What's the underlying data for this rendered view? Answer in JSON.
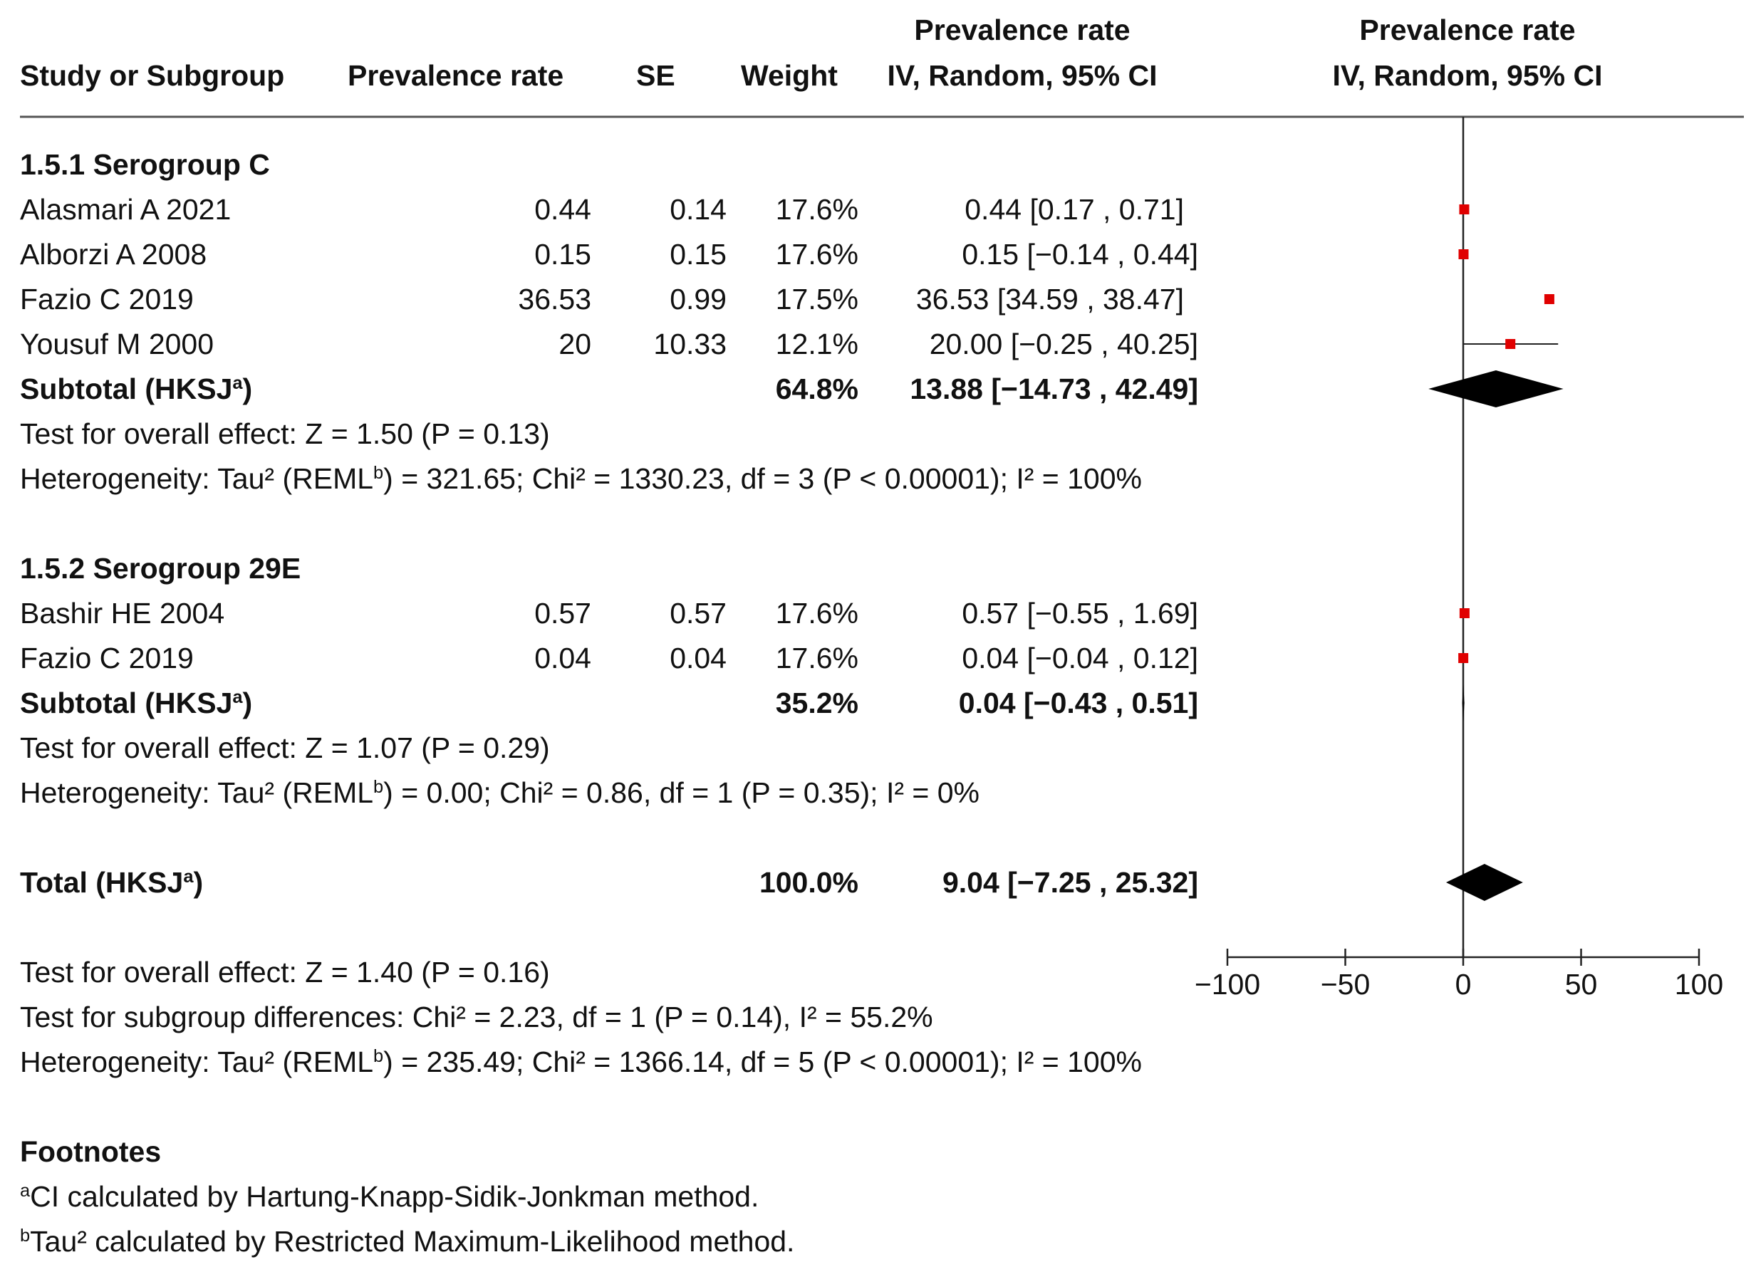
{
  "headers": {
    "study": "Study or Subgroup",
    "prevalence": "Prevalence rate",
    "se": "SE",
    "weight": "Weight",
    "ci_line1": "Prevalence rate",
    "ci_line2": "IV, Random, 95% CI",
    "plot_line1": "Prevalence rate",
    "plot_line2": "IV, Random, 95% CI"
  },
  "groups": [
    {
      "title": "1.5.1 Serogroup C",
      "studies": [
        {
          "name": "Alasmari A 2021",
          "prevalence": "0.44",
          "se": "0.14",
          "weight": "17.6%",
          "ci": "0.44 [0.17 , 0.71]"
        },
        {
          "name": "Alborzi A 2008",
          "prevalence": "0.15",
          "se": "0.15",
          "weight": "17.6%",
          "ci": "0.15 [−0.14 , 0.44]"
        },
        {
          "name": "Fazio C 2019",
          "prevalence": "36.53",
          "se": "0.99",
          "weight": "17.5%",
          "ci": "36.53 [34.59 , 38.47]"
        },
        {
          "name": "Yousuf M 2000",
          "prevalence": "20",
          "se": "10.33",
          "weight": "12.1%",
          "ci": "20.00 [−0.25 , 40.25]"
        }
      ],
      "subtotal": {
        "label": "Subtotal (HKSJ",
        "sup": "a",
        "label_end": ")",
        "weight": "64.8%",
        "ci": "13.88 [−14.73 , 42.49]"
      },
      "overall_effect": "Test for overall effect: Z = 1.50 (P = 0.13)",
      "heterogeneity": {
        "pre": "Heterogeneity: Tau² (REML",
        "sup": "b",
        "post": ") = 321.65; Chi² = 1330.23, df = 3 (P < 0.00001); I² = 100%"
      }
    },
    {
      "title": "1.5.2 Serogroup 29E",
      "studies": [
        {
          "name": "Bashir HE 2004",
          "prevalence": "0.57",
          "se": "0.57",
          "weight": "17.6%",
          "ci": "0.57 [−0.55 , 1.69]"
        },
        {
          "name": "Fazio C 2019",
          "prevalence": "0.04",
          "se": "0.04",
          "weight": "17.6%",
          "ci": "0.04 [−0.04 , 0.12]"
        }
      ],
      "subtotal": {
        "label": "Subtotal (HKSJ",
        "sup": "a",
        "label_end": ")",
        "weight": "35.2%",
        "ci": "0.04 [−0.43 , 0.51]"
      },
      "overall_effect": "Test for overall effect: Z = 1.07 (P = 0.29)",
      "heterogeneity": {
        "pre": "Heterogeneity: Tau² (REML",
        "sup": "b",
        "post": ") = 0.00; Chi² = 0.86, df = 1 (P = 0.35); I² = 0%"
      }
    }
  ],
  "total": {
    "label": "Total (HKSJ",
    "sup": "a",
    "label_end": ")",
    "weight": "100.0%",
    "ci": "9.04 [−7.25 , 25.32]"
  },
  "total_tests": {
    "overall_effect": "Test for overall effect: Z = 1.40 (P = 0.16)",
    "subgroup_differences": "Test for subgroup differences: Chi² = 2.23, df = 1 (P = 0.14), I² = 55.2%",
    "heterogeneity": {
      "pre": "Heterogeneity: Tau² (REML",
      "sup": "b",
      "post": ") = 235.49; Chi² = 1366.14, df = 5 (P < 0.00001); I² = 100%"
    }
  },
  "footnotes": {
    "title": "Footnotes",
    "a": {
      "sup": "a",
      "text": "CI calculated by Hartung-Knapp-Sidik-Jonkman method."
    },
    "b": {
      "sup": "b",
      "text": "Tau² calculated by Restricted Maximum-Likelihood method."
    }
  },
  "colors": {
    "study_marker": "#e00000",
    "diamond": "#000000",
    "axis": "#222222"
  },
  "chart_data": {
    "type": "forest",
    "title": "Prevalence rate IV, Random, 95% CI",
    "xlim": [
      -100,
      100
    ],
    "xticks": [
      -100,
      -50,
      0,
      50,
      100
    ],
    "xtick_labels": [
      "−100",
      "−50",
      "0",
      "50",
      "100"
    ],
    "reference_line": 0,
    "studies": [
      {
        "name": "Alasmari A 2021",
        "group": "1.5.1 Serogroup C",
        "estimate": 0.44,
        "lower": 0.17,
        "upper": 0.71
      },
      {
        "name": "Alborzi A 2008",
        "group": "1.5.1 Serogroup C",
        "estimate": 0.15,
        "lower": -0.14,
        "upper": 0.44
      },
      {
        "name": "Fazio C 2019",
        "group": "1.5.1 Serogroup C",
        "estimate": 36.53,
        "lower": 34.59,
        "upper": 38.47
      },
      {
        "name": "Yousuf M 2000",
        "group": "1.5.1 Serogroup C",
        "estimate": 20.0,
        "lower": -0.25,
        "upper": 40.25
      },
      {
        "name": "Bashir HE 2004",
        "group": "1.5.2 Serogroup 29E",
        "estimate": 0.57,
        "lower": -0.55,
        "upper": 1.69
      },
      {
        "name": "Fazio C 2019",
        "group": "1.5.2 Serogroup 29E",
        "estimate": 0.04,
        "lower": -0.04,
        "upper": 0.12
      }
    ],
    "summaries": [
      {
        "name": "Subtotal 1.5.1 Serogroup C",
        "estimate": 13.88,
        "lower": -14.73,
        "upper": 42.49
      },
      {
        "name": "Subtotal 1.5.2 Serogroup 29E",
        "estimate": 0.04,
        "lower": -0.43,
        "upper": 0.51
      },
      {
        "name": "Total",
        "estimate": 9.04,
        "lower": -7.25,
        "upper": 25.32
      }
    ]
  }
}
